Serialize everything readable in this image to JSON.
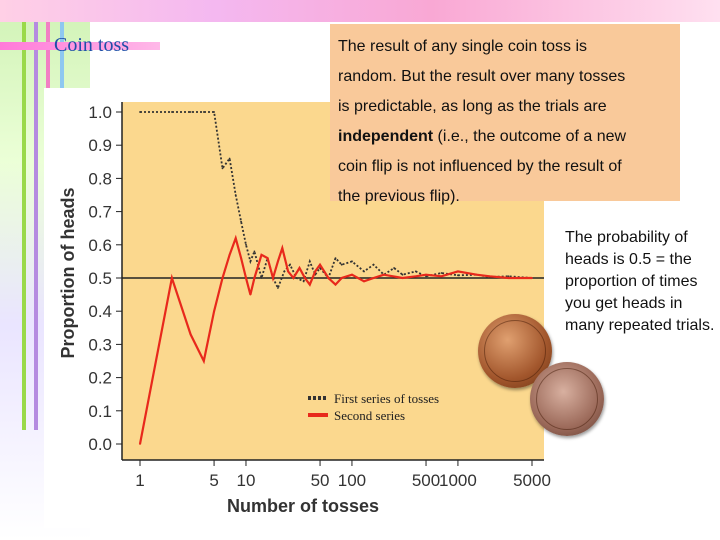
{
  "slide": {
    "title": "Coin toss",
    "callout": {
      "line1": "The result of any single coin toss is",
      "line2": "random.  But the result over many tosses",
      "line3": "is predictable, as long as the trials are",
      "bold": "independent",
      "line4_rest": " (i.e., the outcome of a new",
      "line5": "coin flip is not influenced by the result of",
      "line6": "the previous flip)."
    },
    "side_note": "The probability of heads is 0.5 = the proportion of times you get heads in many repeated trials.",
    "icons": [
      "penny-front-icon",
      "penny-back-icon"
    ]
  },
  "chart_data": {
    "type": "line",
    "xscale": "log",
    "xlabel": "Number of tosses",
    "ylabel": "Proportion of heads",
    "ylim": [
      0,
      1
    ],
    "xlim": [
      1,
      5000
    ],
    "yticks": [
      "0.0",
      "0.1",
      "0.2",
      "0.3",
      "0.4",
      "0.5",
      "0.6",
      "0.7",
      "0.8",
      "0.9",
      "1.0"
    ],
    "xticks": [
      "1",
      "5",
      "10",
      "50",
      "100",
      "500",
      "1000",
      "5000"
    ],
    "reference_line": 0.5,
    "series": [
      {
        "name": "First series of tosses",
        "style": "dotted",
        "color": "#333333",
        "points": [
          [
            1,
            1.0
          ],
          [
            2,
            1.0
          ],
          [
            3,
            1.0
          ],
          [
            4,
            1.0
          ],
          [
            5,
            1.0
          ],
          [
            6,
            0.83
          ],
          [
            7,
            0.86
          ],
          [
            8,
            0.75
          ],
          [
            9,
            0.67
          ],
          [
            10,
            0.6
          ],
          [
            11,
            0.55
          ],
          [
            12,
            0.58
          ],
          [
            14,
            0.5
          ],
          [
            16,
            0.56
          ],
          [
            18,
            0.5
          ],
          [
            20,
            0.47
          ],
          [
            23,
            0.52
          ],
          [
            26,
            0.54
          ],
          [
            30,
            0.5
          ],
          [
            35,
            0.49
          ],
          [
            40,
            0.55
          ],
          [
            45,
            0.51
          ],
          [
            50,
            0.53
          ],
          [
            60,
            0.5
          ],
          [
            70,
            0.56
          ],
          [
            80,
            0.54
          ],
          [
            100,
            0.55
          ],
          [
            130,
            0.52
          ],
          [
            160,
            0.54
          ],
          [
            200,
            0.51
          ],
          [
            250,
            0.53
          ],
          [
            300,
            0.51
          ],
          [
            400,
            0.52
          ],
          [
            500,
            0.505
          ],
          [
            700,
            0.515
          ],
          [
            1000,
            0.508
          ],
          [
            1500,
            0.51
          ],
          [
            2000,
            0.503
          ],
          [
            3000,
            0.505
          ],
          [
            5000,
            0.5
          ]
        ]
      },
      {
        "name": "Second series",
        "style": "solid",
        "color": "#e8291c",
        "points": [
          [
            1,
            0.0
          ],
          [
            2,
            0.5
          ],
          [
            3,
            0.33
          ],
          [
            4,
            0.25
          ],
          [
            5,
            0.4
          ],
          [
            6,
            0.5
          ],
          [
            7,
            0.57
          ],
          [
            8,
            0.62
          ],
          [
            9,
            0.56
          ],
          [
            10,
            0.5
          ],
          [
            11,
            0.45
          ],
          [
            12,
            0.5
          ],
          [
            14,
            0.57
          ],
          [
            16,
            0.56
          ],
          [
            18,
            0.5
          ],
          [
            20,
            0.55
          ],
          [
            22,
            0.59
          ],
          [
            25,
            0.52
          ],
          [
            28,
            0.5
          ],
          [
            32,
            0.53
          ],
          [
            36,
            0.5
          ],
          [
            40,
            0.48
          ],
          [
            45,
            0.52
          ],
          [
            50,
            0.54
          ],
          [
            60,
            0.5
          ],
          [
            70,
            0.48
          ],
          [
            80,
            0.5
          ],
          [
            100,
            0.51
          ],
          [
            130,
            0.49
          ],
          [
            160,
            0.5
          ],
          [
            200,
            0.51
          ],
          [
            300,
            0.5
          ],
          [
            400,
            0.505
          ],
          [
            500,
            0.51
          ],
          [
            700,
            0.505
          ],
          [
            1000,
            0.52
          ],
          [
            1500,
            0.51
          ],
          [
            2000,
            0.505
          ],
          [
            3000,
            0.5
          ],
          [
            5000,
            0.5
          ]
        ]
      }
    ]
  }
}
